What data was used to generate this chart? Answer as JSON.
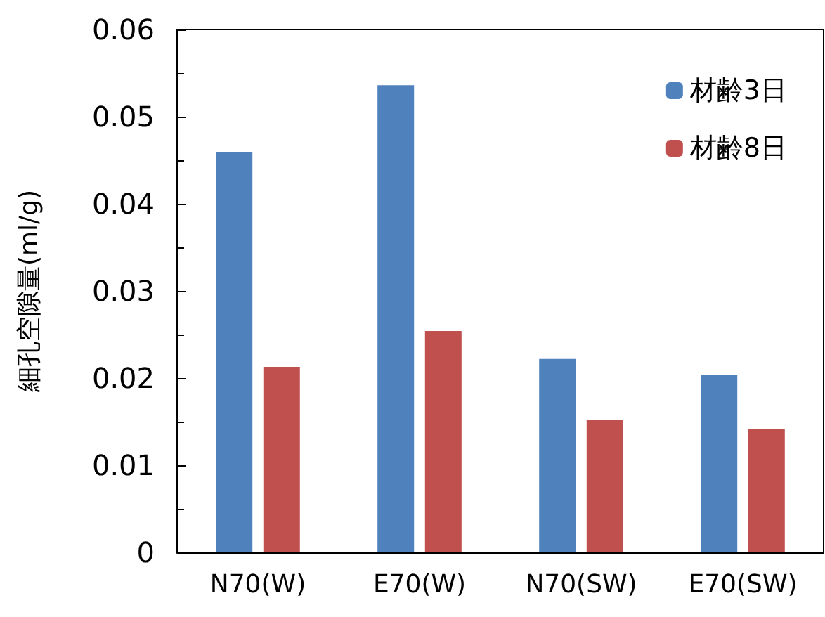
{
  "chart_data": {
    "type": "bar",
    "ylabel": "細孔空隙量(ml/g)",
    "categories": [
      "N70(W)",
      "E70(W)",
      "N70(SW)",
      "E70(SW)"
    ],
    "series": [
      {
        "name": "材齢3日",
        "color": "#4f81bd",
        "values": [
          0.0459,
          0.0536,
          0.0222,
          0.0204
        ]
      },
      {
        "name": "材齢8日",
        "color": "#c0504d",
        "values": [
          0.0213,
          0.0254,
          0.0152,
          0.0142
        ]
      }
    ],
    "ylim": [
      0,
      0.06
    ],
    "yticks": [
      0,
      0.01,
      0.02,
      0.03,
      0.04,
      0.05,
      0.06
    ],
    "grid": false,
    "legend": "top right"
  }
}
